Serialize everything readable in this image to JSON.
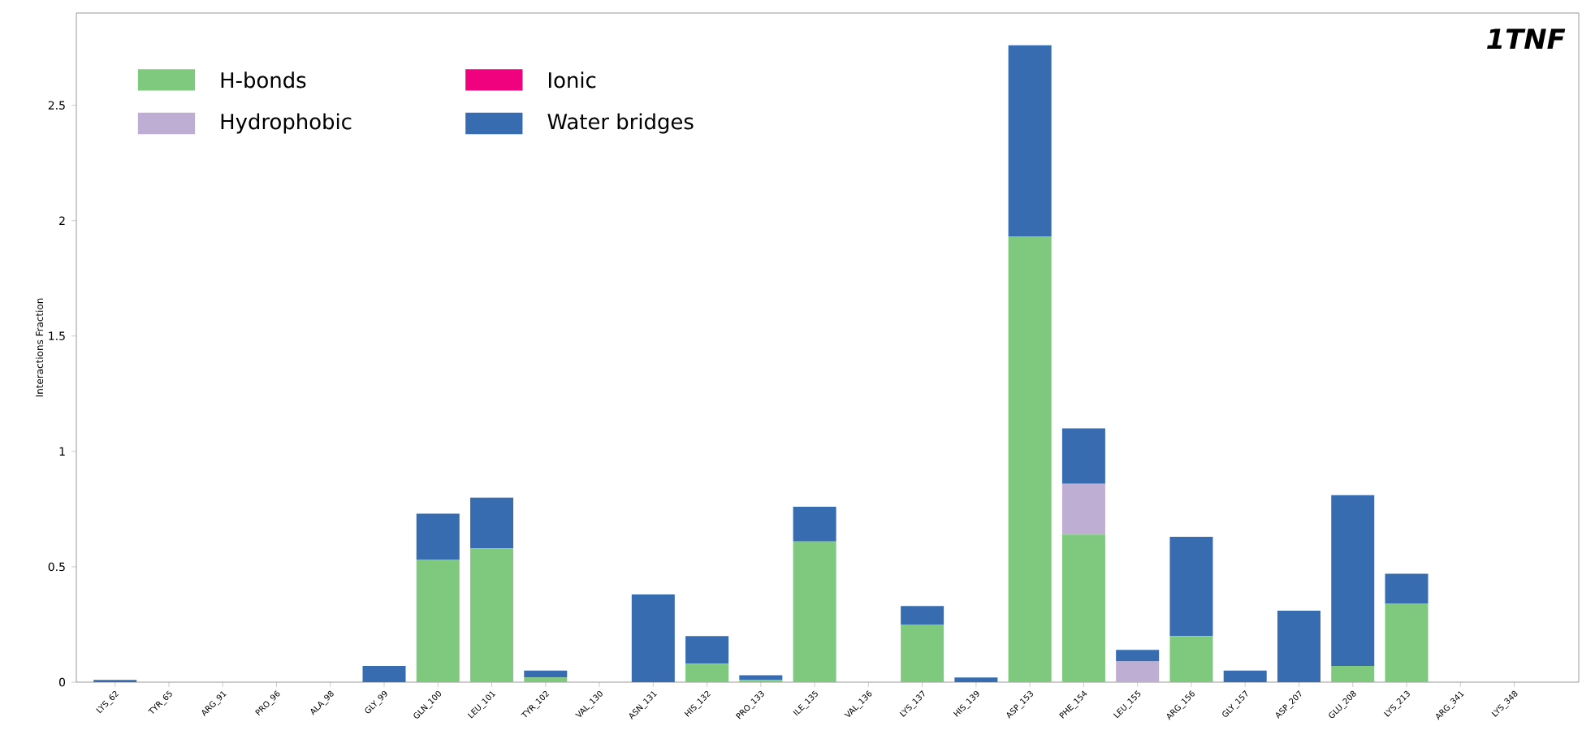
{
  "chart_data": {
    "type": "bar",
    "stacked": true,
    "ylabel": "Interactions Fraction",
    "annotations": [
      "1TNF"
    ],
    "categories": [
      "LYS_62",
      "TYR_65",
      "ARG_91",
      "PRO_96",
      "ALA_98",
      "GLY_99",
      "GLN_100",
      "LEU_101",
      "TYR_102",
      "VAL_130",
      "ASN_131",
      "HIS_132",
      "PRO_133",
      "ILE_135",
      "VAL_136",
      "LYS_137",
      "HIS_139",
      "ASP_153",
      "PHE_154",
      "LEU_155",
      "ARG_156",
      "GLY_157",
      "ASP_207",
      "GLU_208",
      "LYS_213",
      "ARG_341",
      "LYS_348"
    ],
    "series": [
      {
        "name": "H-bonds",
        "color": "#7fc97f",
        "values": [
          0,
          0,
          0,
          0,
          0,
          0,
          0.53,
          0.58,
          0.02,
          0,
          0,
          0.08,
          0.01,
          0.61,
          0,
          0.25,
          0,
          1.93,
          0.64,
          0,
          0.2,
          0,
          0,
          0.07,
          0.34,
          0,
          0
        ]
      },
      {
        "name": "Hydrophobic",
        "color": "#beaed4",
        "values": [
          0,
          0,
          0,
          0,
          0,
          0,
          0,
          0,
          0,
          0,
          0,
          0,
          0,
          0,
          0,
          0,
          0,
          0,
          0.22,
          0.09,
          0,
          0,
          0,
          0,
          0,
          0,
          0
        ]
      },
      {
        "name": "Ionic",
        "color": "#f0027f",
        "values": [
          0,
          0,
          0,
          0,
          0,
          0,
          0,
          0,
          0,
          0,
          0,
          0,
          0,
          0,
          0,
          0,
          0,
          0,
          0,
          0,
          0,
          0,
          0,
          0,
          0,
          0,
          0
        ]
      },
      {
        "name": "Water bridges",
        "color": "#386cb0",
        "values": [
          0.01,
          0,
          0,
          0,
          0,
          0.07,
          0.2,
          0.22,
          0.03,
          0,
          0.38,
          0.12,
          0.02,
          0.15,
          0,
          0.08,
          0.02,
          0.83,
          0.24,
          0.05,
          0.43,
          0.05,
          0.31,
          0.74,
          0.13,
          0,
          0
        ]
      }
    ],
    "ylim": [
      0,
      2.9
    ],
    "yticks": [
      0,
      0.5,
      1,
      1.5,
      2,
      2.5
    ],
    "legend": "top left",
    "grid": false
  }
}
